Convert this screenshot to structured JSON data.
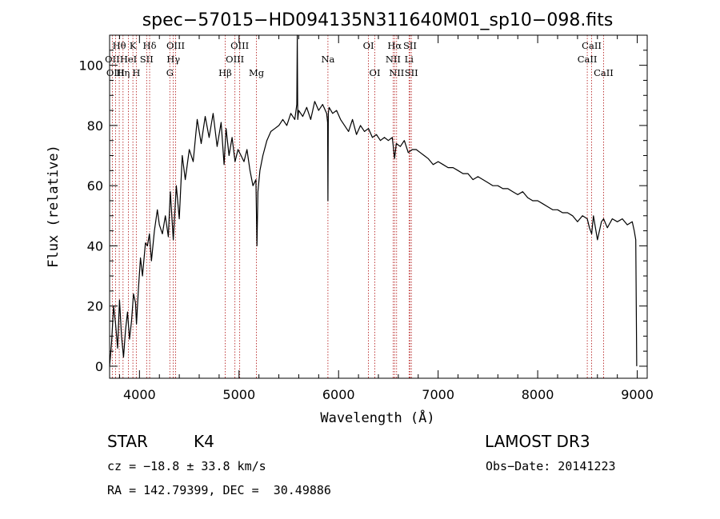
{
  "chart_data": {
    "type": "line",
    "title": "spec−57015−HD094135N311640M01_sp10−098.fits",
    "xlabel": "Wavelength (Å)",
    "ylabel": "Flux (relative)",
    "xlim": [
      3700,
      9100
    ],
    "ylim": [
      -4,
      110
    ],
    "xticks": [
      4000,
      5000,
      6000,
      7000,
      8000,
      9000
    ],
    "yticks": [
      0,
      20,
      40,
      60,
      80,
      100
    ],
    "grid": false,
    "series": [
      {
        "color": "#000000",
        "x": [
          3700,
          3720,
          3740,
          3760,
          3780,
          3800,
          3820,
          3840,
          3860,
          3880,
          3900,
          3920,
          3940,
          3960,
          3970,
          3990,
          4010,
          4030,
          4060,
          4080,
          4100,
          4120,
          4150,
          4180,
          4200,
          4230,
          4260,
          4290,
          4310,
          4340,
          4370,
          4400,
          4430,
          4460,
          4500,
          4540,
          4580,
          4620,
          4660,
          4700,
          4740,
          4780,
          4820,
          4850,
          4870,
          4900,
          4930,
          4960,
          4990,
          5020,
          5050,
          5080,
          5110,
          5140,
          5170,
          5180,
          5190,
          5210,
          5240,
          5280,
          5320,
          5360,
          5400,
          5440,
          5480,
          5520,
          5560,
          5580,
          5585,
          5590,
          5600,
          5640,
          5680,
          5720,
          5760,
          5800,
          5840,
          5880,
          5890,
          5893,
          5897,
          5905,
          5940,
          5980,
          6020,
          6060,
          6100,
          6140,
          6180,
          6220,
          6260,
          6300,
          6340,
          6380,
          6420,
          6460,
          6500,
          6540,
          6562,
          6580,
          6620,
          6660,
          6700,
          6740,
          6780,
          6820,
          6860,
          6900,
          6950,
          7000,
          7050,
          7100,
          7150,
          7200,
          7250,
          7300,
          7350,
          7400,
          7450,
          7500,
          7550,
          7600,
          7650,
          7700,
          7750,
          7800,
          7850,
          7900,
          7950,
          8000,
          8050,
          8100,
          8150,
          8200,
          8250,
          8300,
          8350,
          8400,
          8450,
          8498,
          8520,
          8542,
          8560,
          8600,
          8640,
          8662,
          8700,
          8750,
          8800,
          8850,
          8900,
          8950,
          8970,
          8985,
          8995
        ],
        "y": [
          0,
          8,
          20,
          14,
          6,
          22,
          10,
          3,
          12,
          18,
          9,
          15,
          24,
          21,
          14,
          26,
          36,
          30,
          41,
          40,
          44,
          35,
          45,
          52,
          47,
          44,
          50,
          43,
          58,
          42,
          60,
          49,
          70,
          62,
          72,
          68,
          82,
          74,
          83,
          76,
          84,
          73,
          81,
          67,
          79,
          70,
          76,
          68,
          72,
          70,
          68,
          72,
          65,
          60,
          62,
          40,
          58,
          65,
          70,
          75,
          78,
          79,
          80,
          82,
          80,
          84,
          82,
          87,
          110,
          82,
          85,
          83,
          86,
          82,
          88,
          85,
          87,
          84,
          81,
          55,
          84,
          86,
          84,
          85,
          82,
          80,
          78,
          82,
          77,
          80,
          78,
          79,
          76,
          77,
          75,
          76,
          75,
          76,
          69,
          74,
          73,
          75,
          71,
          72,
          72,
          71,
          70,
          69,
          67,
          68,
          67,
          66,
          66,
          65,
          64,
          64,
          62,
          63,
          62,
          61,
          60,
          60,
          59,
          59,
          58,
          57,
          58,
          56,
          55,
          55,
          54,
          53,
          52,
          52,
          51,
          51,
          50,
          48,
          50,
          49,
          46,
          44,
          50,
          42,
          48,
          49,
          46,
          49,
          48,
          49,
          47,
          48,
          45,
          42,
          0
        ]
      }
    ],
    "spectral_lines": [
      {
        "label": "Hθ",
        "x": 3797,
        "row": 0
      },
      {
        "label": "OII",
        "x": 3727,
        "row": 1
      },
      {
        "label": "OIII",
        "x": 3760,
        "row": 2
      },
      {
        "label": "Hη",
        "x": 3835,
        "row": 2
      },
      {
        "label": "K",
        "x": 3934,
        "row": 0
      },
      {
        "label": "HeI",
        "x": 3889,
        "row": 1
      },
      {
        "label": "H",
        "x": 3968,
        "row": 2
      },
      {
        "label": "SII",
        "x": 4072,
        "row": 1
      },
      {
        "label": "Hδ",
        "x": 4102,
        "row": 0
      },
      {
        "label": "OIII",
        "x": 4363,
        "row": 0
      },
      {
        "label": "Hγ",
        "x": 4340,
        "row": 1
      },
      {
        "label": "G",
        "x": 4305,
        "row": 2
      },
      {
        "label": "Hβ",
        "x": 4861,
        "row": 2
      },
      {
        "label": "OIII",
        "x": 5007,
        "row": 0
      },
      {
        "label": "OIII",
        "x": 4959,
        "row": 1
      },
      {
        "label": "Mg",
        "x": 5175,
        "row": 2
      },
      {
        "label": "Na",
        "x": 5893,
        "row": 1
      },
      {
        "label": "OI",
        "x": 6300,
        "row": 0
      },
      {
        "label": "OI",
        "x": 6364,
        "row": 2
      },
      {
        "label": "Hα",
        "x": 6563,
        "row": 0
      },
      {
        "label": "NII",
        "x": 6548,
        "row": 1
      },
      {
        "label": "NII",
        "x": 6583,
        "row": 2
      },
      {
        "label": "SII",
        "x": 6717,
        "row": 0
      },
      {
        "label": "Li",
        "x": 6708,
        "row": 1
      },
      {
        "label": "SII",
        "x": 6731,
        "row": 2
      },
      {
        "label": "CaII",
        "x": 8542,
        "row": 0
      },
      {
        "label": "CaII",
        "x": 8498,
        "row": 1
      },
      {
        "label": "CaII",
        "x": 8662,
        "row": 2
      }
    ]
  },
  "info": {
    "object_class": "STAR",
    "subclass": "K4",
    "survey": "LAMOST DR3",
    "redshift_line": "cz = −18.8 ± 33.8 km/s",
    "obs_date_line": "Obs−Date: 20141223",
    "coords_line": "RA = 142.79399, DEC =  30.49886"
  }
}
